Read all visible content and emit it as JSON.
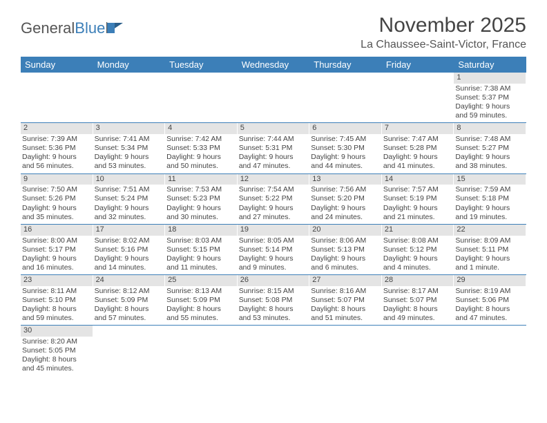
{
  "logo": {
    "text1": "General",
    "text2": "Blue"
  },
  "title": "November 2025",
  "location": "La Chaussee-Saint-Victor, France",
  "colors": {
    "header_bg": "#3c7fb8",
    "header_fg": "#ffffff",
    "daynum_bg": "#e4e4e4",
    "row_border": "#3c7fb8",
    "text": "#444444"
  },
  "weekdays": [
    "Sunday",
    "Monday",
    "Tuesday",
    "Wednesday",
    "Thursday",
    "Friday",
    "Saturday"
  ],
  "weeks": [
    [
      {
        "n": "",
        "sr": "",
        "ss": "",
        "dl": ""
      },
      {
        "n": "",
        "sr": "",
        "ss": "",
        "dl": ""
      },
      {
        "n": "",
        "sr": "",
        "ss": "",
        "dl": ""
      },
      {
        "n": "",
        "sr": "",
        "ss": "",
        "dl": ""
      },
      {
        "n": "",
        "sr": "",
        "ss": "",
        "dl": ""
      },
      {
        "n": "",
        "sr": "",
        "ss": "",
        "dl": ""
      },
      {
        "n": "1",
        "sr": "Sunrise: 7:38 AM",
        "ss": "Sunset: 5:37 PM",
        "dl": "Daylight: 9 hours and 59 minutes."
      }
    ],
    [
      {
        "n": "2",
        "sr": "Sunrise: 7:39 AM",
        "ss": "Sunset: 5:36 PM",
        "dl": "Daylight: 9 hours and 56 minutes."
      },
      {
        "n": "3",
        "sr": "Sunrise: 7:41 AM",
        "ss": "Sunset: 5:34 PM",
        "dl": "Daylight: 9 hours and 53 minutes."
      },
      {
        "n": "4",
        "sr": "Sunrise: 7:42 AM",
        "ss": "Sunset: 5:33 PM",
        "dl": "Daylight: 9 hours and 50 minutes."
      },
      {
        "n": "5",
        "sr": "Sunrise: 7:44 AM",
        "ss": "Sunset: 5:31 PM",
        "dl": "Daylight: 9 hours and 47 minutes."
      },
      {
        "n": "6",
        "sr": "Sunrise: 7:45 AM",
        "ss": "Sunset: 5:30 PM",
        "dl": "Daylight: 9 hours and 44 minutes."
      },
      {
        "n": "7",
        "sr": "Sunrise: 7:47 AM",
        "ss": "Sunset: 5:28 PM",
        "dl": "Daylight: 9 hours and 41 minutes."
      },
      {
        "n": "8",
        "sr": "Sunrise: 7:48 AM",
        "ss": "Sunset: 5:27 PM",
        "dl": "Daylight: 9 hours and 38 minutes."
      }
    ],
    [
      {
        "n": "9",
        "sr": "Sunrise: 7:50 AM",
        "ss": "Sunset: 5:26 PM",
        "dl": "Daylight: 9 hours and 35 minutes."
      },
      {
        "n": "10",
        "sr": "Sunrise: 7:51 AM",
        "ss": "Sunset: 5:24 PM",
        "dl": "Daylight: 9 hours and 32 minutes."
      },
      {
        "n": "11",
        "sr": "Sunrise: 7:53 AM",
        "ss": "Sunset: 5:23 PM",
        "dl": "Daylight: 9 hours and 30 minutes."
      },
      {
        "n": "12",
        "sr": "Sunrise: 7:54 AM",
        "ss": "Sunset: 5:22 PM",
        "dl": "Daylight: 9 hours and 27 minutes."
      },
      {
        "n": "13",
        "sr": "Sunrise: 7:56 AM",
        "ss": "Sunset: 5:20 PM",
        "dl": "Daylight: 9 hours and 24 minutes."
      },
      {
        "n": "14",
        "sr": "Sunrise: 7:57 AM",
        "ss": "Sunset: 5:19 PM",
        "dl": "Daylight: 9 hours and 21 minutes."
      },
      {
        "n": "15",
        "sr": "Sunrise: 7:59 AM",
        "ss": "Sunset: 5:18 PM",
        "dl": "Daylight: 9 hours and 19 minutes."
      }
    ],
    [
      {
        "n": "16",
        "sr": "Sunrise: 8:00 AM",
        "ss": "Sunset: 5:17 PM",
        "dl": "Daylight: 9 hours and 16 minutes."
      },
      {
        "n": "17",
        "sr": "Sunrise: 8:02 AM",
        "ss": "Sunset: 5:16 PM",
        "dl": "Daylight: 9 hours and 14 minutes."
      },
      {
        "n": "18",
        "sr": "Sunrise: 8:03 AM",
        "ss": "Sunset: 5:15 PM",
        "dl": "Daylight: 9 hours and 11 minutes."
      },
      {
        "n": "19",
        "sr": "Sunrise: 8:05 AM",
        "ss": "Sunset: 5:14 PM",
        "dl": "Daylight: 9 hours and 9 minutes."
      },
      {
        "n": "20",
        "sr": "Sunrise: 8:06 AM",
        "ss": "Sunset: 5:13 PM",
        "dl": "Daylight: 9 hours and 6 minutes."
      },
      {
        "n": "21",
        "sr": "Sunrise: 8:08 AM",
        "ss": "Sunset: 5:12 PM",
        "dl": "Daylight: 9 hours and 4 minutes."
      },
      {
        "n": "22",
        "sr": "Sunrise: 8:09 AM",
        "ss": "Sunset: 5:11 PM",
        "dl": "Daylight: 9 hours and 1 minute."
      }
    ],
    [
      {
        "n": "23",
        "sr": "Sunrise: 8:11 AM",
        "ss": "Sunset: 5:10 PM",
        "dl": "Daylight: 8 hours and 59 minutes."
      },
      {
        "n": "24",
        "sr": "Sunrise: 8:12 AM",
        "ss": "Sunset: 5:09 PM",
        "dl": "Daylight: 8 hours and 57 minutes."
      },
      {
        "n": "25",
        "sr": "Sunrise: 8:13 AM",
        "ss": "Sunset: 5:09 PM",
        "dl": "Daylight: 8 hours and 55 minutes."
      },
      {
        "n": "26",
        "sr": "Sunrise: 8:15 AM",
        "ss": "Sunset: 5:08 PM",
        "dl": "Daylight: 8 hours and 53 minutes."
      },
      {
        "n": "27",
        "sr": "Sunrise: 8:16 AM",
        "ss": "Sunset: 5:07 PM",
        "dl": "Daylight: 8 hours and 51 minutes."
      },
      {
        "n": "28",
        "sr": "Sunrise: 8:17 AM",
        "ss": "Sunset: 5:07 PM",
        "dl": "Daylight: 8 hours and 49 minutes."
      },
      {
        "n": "29",
        "sr": "Sunrise: 8:19 AM",
        "ss": "Sunset: 5:06 PM",
        "dl": "Daylight: 8 hours and 47 minutes."
      }
    ],
    [
      {
        "n": "30",
        "sr": "Sunrise: 8:20 AM",
        "ss": "Sunset: 5:05 PM",
        "dl": "Daylight: 8 hours and 45 minutes."
      },
      {
        "n": "",
        "sr": "",
        "ss": "",
        "dl": ""
      },
      {
        "n": "",
        "sr": "",
        "ss": "",
        "dl": ""
      },
      {
        "n": "",
        "sr": "",
        "ss": "",
        "dl": ""
      },
      {
        "n": "",
        "sr": "",
        "ss": "",
        "dl": ""
      },
      {
        "n": "",
        "sr": "",
        "ss": "",
        "dl": ""
      },
      {
        "n": "",
        "sr": "",
        "ss": "",
        "dl": ""
      }
    ]
  ]
}
